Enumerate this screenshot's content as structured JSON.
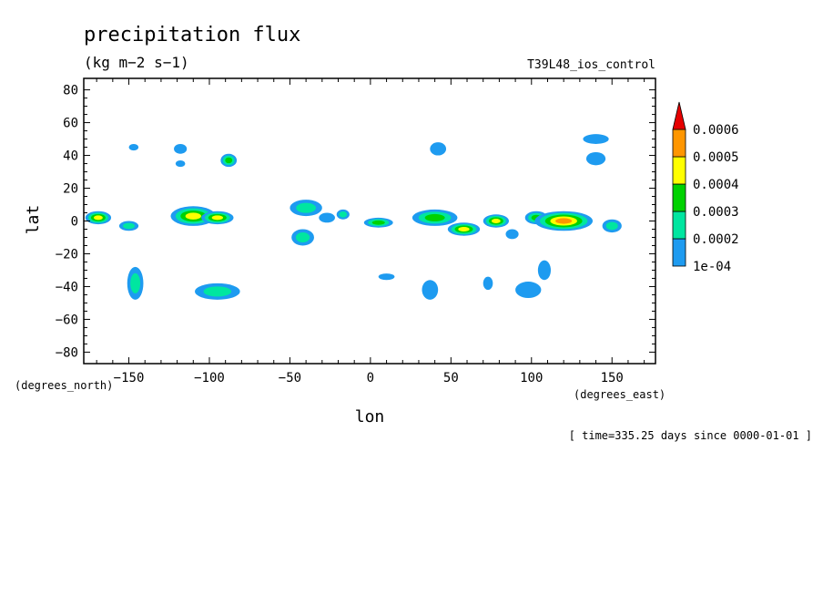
{
  "chart_data": {
    "type": "heatmap",
    "title": "precipitation flux",
    "units": "(kg m−2 s−1)",
    "subtitle": "T39L48_ios_control",
    "xlabel": "lon",
    "ylabel": "lat",
    "x_unit_label": "(degrees_east)",
    "y_unit_label": "(degrees_north)",
    "footer": "[ time=335.25 days since 0000-01-01 ]",
    "xlim": [
      -178,
      177
    ],
    "ylim": [
      -87,
      87
    ],
    "x_ticks": [
      -150,
      -100,
      -50,
      0,
      50,
      100,
      150
    ],
    "x_tick_labels": [
      "−150",
      "−100",
      "−50",
      "0",
      "50",
      "100",
      "150"
    ],
    "y_ticks": [
      80,
      60,
      40,
      20,
      0,
      -20,
      -40,
      -60,
      -80
    ],
    "y_tick_labels": [
      "80",
      "60",
      "40",
      "20",
      "0",
      "−20",
      "−40",
      "−60",
      "−80"
    ],
    "colorbar": {
      "levels": [
        "1e-04",
        "0.0002",
        "0.0003",
        "0.0004",
        "0.0005",
        "0.0006"
      ],
      "colors": [
        "#1e9bf0",
        "#00e6a0",
        "#00d200",
        "#ffff00",
        "#ff9600",
        "#e60000"
      ]
    },
    "features": [
      {
        "lon": -169,
        "lat": 2,
        "level": 4,
        "rx": 8,
        "ry": 4
      },
      {
        "lon": -150,
        "lat": -3,
        "level": 2,
        "rx": 6,
        "ry": 3
      },
      {
        "lon": -146,
        "lat": -38,
        "level": 2,
        "rx": 5,
        "ry": 10
      },
      {
        "lon": -147,
        "lat": 45,
        "level": 1,
        "rx": 3,
        "ry": 2
      },
      {
        "lon": -118,
        "lat": 44,
        "level": 1,
        "rx": 4,
        "ry": 3
      },
      {
        "lon": -118,
        "lat": 35,
        "level": 1,
        "rx": 3,
        "ry": 2
      },
      {
        "lon": -110,
        "lat": 3,
        "level": 4,
        "rx": 14,
        "ry": 6
      },
      {
        "lon": -95,
        "lat": 2,
        "level": 4,
        "rx": 10,
        "ry": 4
      },
      {
        "lon": -88,
        "lat": 37,
        "level": 3,
        "rx": 5,
        "ry": 4
      },
      {
        "lon": -95,
        "lat": -43,
        "level": 2,
        "rx": 14,
        "ry": 5
      },
      {
        "lon": -40,
        "lat": 8,
        "level": 2,
        "rx": 10,
        "ry": 5
      },
      {
        "lon": -42,
        "lat": -10,
        "level": 2,
        "rx": 7,
        "ry": 5
      },
      {
        "lon": -27,
        "lat": 2,
        "level": 1,
        "rx": 5,
        "ry": 3
      },
      {
        "lon": -17,
        "lat": 4,
        "level": 2,
        "rx": 4,
        "ry": 3
      },
      {
        "lon": 5,
        "lat": -1,
        "level": 3,
        "rx": 9,
        "ry": 3
      },
      {
        "lon": 40,
        "lat": 2,
        "level": 3,
        "rx": 14,
        "ry": 5
      },
      {
        "lon": 58,
        "lat": -5,
        "level": 4,
        "rx": 10,
        "ry": 4
      },
      {
        "lon": 42,
        "lat": 44,
        "level": 1,
        "rx": 5,
        "ry": 4
      },
      {
        "lon": 78,
        "lat": 0,
        "level": 4,
        "rx": 8,
        "ry": 4
      },
      {
        "lon": 103,
        "lat": 2,
        "level": 3,
        "rx": 7,
        "ry": 4
      },
      {
        "lon": 120,
        "lat": 0,
        "level": 5,
        "rx": 18,
        "ry": 6
      },
      {
        "lon": 150,
        "lat": -3,
        "level": 2,
        "rx": 6,
        "ry": 4
      },
      {
        "lon": 140,
        "lat": 50,
        "level": 1,
        "rx": 8,
        "ry": 3
      },
      {
        "lon": 140,
        "lat": 38,
        "level": 1,
        "rx": 6,
        "ry": 4
      },
      {
        "lon": 37,
        "lat": -42,
        "level": 1,
        "rx": 5,
        "ry": 6
      },
      {
        "lon": 73,
        "lat": -38,
        "level": 1,
        "rx": 3,
        "ry": 4
      },
      {
        "lon": 98,
        "lat": -42,
        "level": 1,
        "rx": 8,
        "ry": 5
      },
      {
        "lon": 108,
        "lat": -30,
        "level": 1,
        "rx": 4,
        "ry": 6
      },
      {
        "lon": 10,
        "lat": -34,
        "level": 1,
        "rx": 5,
        "ry": 2
      },
      {
        "lon": 88,
        "lat": -8,
        "level": 1,
        "rx": 4,
        "ry": 3
      }
    ]
  }
}
